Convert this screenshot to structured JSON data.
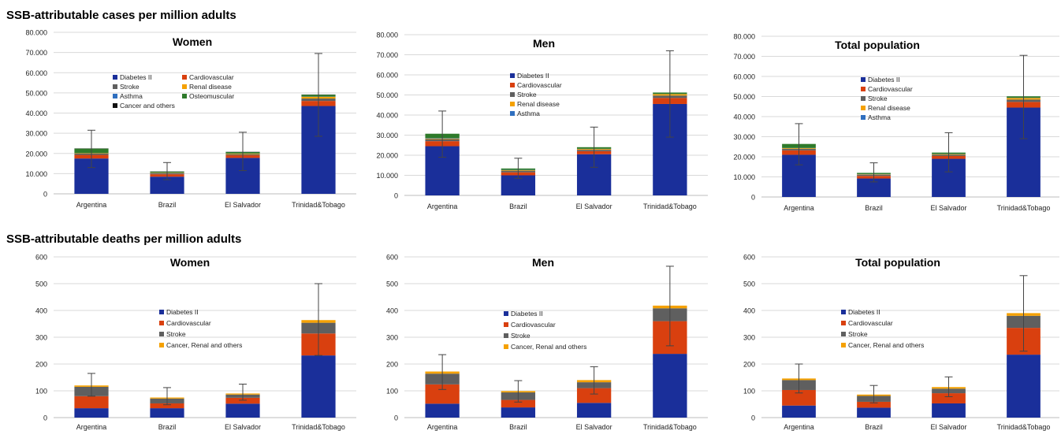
{
  "colors": {
    "diabetes": "#1a2f9a",
    "cardiovascular": "#d9400f",
    "stroke": "#5f5f5f",
    "renal": "#f5a100",
    "asthma": "#2f6fbf",
    "osteomuscular": "#2e7a2a",
    "cancer": "#111111"
  },
  "sections": [
    {
      "title": "SSB-attributable cases per million adults"
    },
    {
      "title": "SSB-attributable deaths per million adults"
    }
  ],
  "chart_data": [
    {
      "type": "bar",
      "stacked": true,
      "title": "Women",
      "categories": [
        "Argentina",
        "Brazil",
        "El Salvador",
        "Trinidad&Tobago"
      ],
      "yticks": [
        "0",
        "10.000",
        "20.000",
        "30.000",
        "40.000",
        "50.000",
        "60.000",
        "70.000",
        "80.000"
      ],
      "ylim": [
        0,
        80000
      ],
      "grid": true,
      "series": [
        {
          "name": "Diabetes II",
          "color_key": "diabetes",
          "values": [
            17500,
            8500,
            17800,
            43500
          ]
        },
        {
          "name": "Cardiovascular",
          "color_key": "cardiovascular",
          "values": [
            1800,
            1200,
            1300,
            2500
          ]
        },
        {
          "name": "Stroke",
          "color_key": "stroke",
          "values": [
            600,
            500,
            500,
            1200
          ]
        },
        {
          "name": "Renal disease",
          "color_key": "renal",
          "values": [
            200,
            200,
            300,
            900
          ]
        },
        {
          "name": "Asthma",
          "color_key": "asthma",
          "values": [
            100,
            100,
            100,
            100
          ]
        },
        {
          "name": "Osteomuscular",
          "color_key": "osteomuscular",
          "values": [
            2200,
            500,
            700,
            900
          ]
        },
        {
          "name": "Cancer and others",
          "color_key": "cancer",
          "values": [
            100,
            100,
            100,
            100
          ]
        }
      ],
      "error_bars": [
        {
          "low": 13000,
          "high": 31500
        },
        {
          "low": 7000,
          "high": 15500
        },
        {
          "low": 11500,
          "high": 30500
        },
        {
          "low": 28500,
          "high": 69500
        }
      ],
      "legend_columns": 2
    },
    {
      "type": "bar",
      "stacked": true,
      "title": "Men",
      "categories": [
        "Argentina",
        "Brazil",
        "El Salvador",
        "Trinidad&Tobago"
      ],
      "yticks": [
        "0",
        "10.000",
        "20.000",
        "30.000",
        "40.000",
        "50.000",
        "60.000",
        "70.000",
        "80.000"
      ],
      "ylim": [
        0,
        80000
      ],
      "grid": true,
      "series": [
        {
          "name": "Diabetes II",
          "color_key": "diabetes",
          "values": [
            24500,
            10000,
            20500,
            45500
          ]
        },
        {
          "name": "Cardiovascular",
          "color_key": "cardiovascular",
          "values": [
            2500,
            1500,
            1500,
            3000
          ]
        },
        {
          "name": "Stroke",
          "color_key": "stroke",
          "values": [
            1000,
            800,
            700,
            1200
          ]
        },
        {
          "name": "Renal disease",
          "color_key": "renal",
          "values": [
            300,
            300,
            400,
            700
          ]
        },
        {
          "name": "Asthma",
          "color_key": "asthma",
          "values": [
            200,
            100,
            100,
            100
          ]
        },
        {
          "name": "",
          "color_key": "osteomuscular",
          "values": [
            2200,
            700,
            800,
            700
          ]
        }
      ],
      "error_bars": [
        {
          "low": 19000,
          "high": 42000
        },
        {
          "low": 8500,
          "high": 18500
        },
        {
          "low": 14000,
          "high": 34000
        },
        {
          "low": 29000,
          "high": 72000
        }
      ],
      "legend_columns": 1
    },
    {
      "type": "bar",
      "stacked": true,
      "title": "Total population",
      "categories": [
        "Argentina",
        "Brazil",
        "El Salvador",
        "Trinidad&Tobago"
      ],
      "yticks": [
        "0",
        "10.000",
        "20.000",
        "30.000",
        "40.000",
        "50.000",
        "60.000",
        "70.000",
        "80.000"
      ],
      "ylim": [
        0,
        80000
      ],
      "grid": true,
      "series": [
        {
          "name": "Diabetes II",
          "color_key": "diabetes",
          "values": [
            21000,
            9200,
            19000,
            44500
          ]
        },
        {
          "name": "Cardiovascular",
          "color_key": "cardiovascular",
          "values": [
            2200,
            1300,
            1400,
            2800
          ]
        },
        {
          "name": "Stroke",
          "color_key": "stroke",
          "values": [
            800,
            600,
            600,
            1200
          ]
        },
        {
          "name": "Renal disease",
          "color_key": "renal",
          "values": [
            300,
            200,
            300,
            800
          ]
        },
        {
          "name": "Asthma",
          "color_key": "asthma",
          "values": [
            100,
            100,
            100,
            100
          ]
        },
        {
          "name": "",
          "color_key": "osteomuscular",
          "values": [
            2000,
            600,
            700,
            700
          ]
        }
      ],
      "error_bars": [
        {
          "low": 16000,
          "high": 36500
        },
        {
          "low": 7500,
          "high": 17000
        },
        {
          "low": 12500,
          "high": 32000
        },
        {
          "low": 29000,
          "high": 70500
        }
      ],
      "legend_columns": 1
    },
    {
      "type": "bar",
      "stacked": true,
      "title": "Women",
      "categories": [
        "Argentina",
        "Brazil",
        "El Salvador",
        "Trinidad&Tobago"
      ],
      "yticks": [
        "0",
        "100",
        "200",
        "300",
        "400",
        "500",
        "600"
      ],
      "ylim": [
        0,
        600
      ],
      "grid": true,
      "series": [
        {
          "name": "Diabetes II",
          "color_key": "diabetes",
          "values": [
            35,
            35,
            52,
            232
          ]
        },
        {
          "name": "Cardiovascular",
          "color_key": "cardiovascular",
          "values": [
            45,
            18,
            22,
            82
          ]
        },
        {
          "name": "Stroke",
          "color_key": "stroke",
          "values": [
            35,
            18,
            12,
            40
          ]
        },
        {
          "name": "Cancer, Renal and others",
          "color_key": "renal",
          "values": [
            5,
            4,
            4,
            10
          ]
        }
      ],
      "error_bars": [
        {
          "low": 80,
          "high": 165
        },
        {
          "low": 48,
          "high": 112
        },
        {
          "low": 65,
          "high": 125
        },
        {
          "low": 232,
          "high": 500
        }
      ],
      "legend_columns": 1
    },
    {
      "type": "bar",
      "stacked": true,
      "title": "Men",
      "categories": [
        "Argentina",
        "Brazil",
        "El Salvador",
        "Trinidad&Tobago"
      ],
      "yticks": [
        "0",
        "100",
        "200",
        "300",
        "400",
        "500",
        "600"
      ],
      "ylim": [
        0,
        600
      ],
      "grid": true,
      "series": [
        {
          "name": "Diabetes II",
          "color_key": "diabetes",
          "values": [
            52,
            38,
            55,
            238
          ]
        },
        {
          "name": "Cardiovascular",
          "color_key": "cardiovascular",
          "values": [
            72,
            28,
            55,
            122
          ]
        },
        {
          "name": "Stroke",
          "color_key": "stroke",
          "values": [
            40,
            28,
            22,
            48
          ]
        },
        {
          "name": "Cancer, Renal and others",
          "color_key": "renal",
          "values": [
            8,
            5,
            8,
            10
          ]
        }
      ],
      "error_bars": [
        {
          "low": 105,
          "high": 235
        },
        {
          "low": 58,
          "high": 138
        },
        {
          "low": 88,
          "high": 190
        },
        {
          "low": 268,
          "high": 565
        }
      ],
      "legend_columns": 1
    },
    {
      "type": "bar",
      "stacked": true,
      "title": "Total population",
      "categories": [
        "Argentina",
        "Brazil",
        "El Salvador",
        "Trinidad&Tobago"
      ],
      "yticks": [
        "0",
        "100",
        "200",
        "300",
        "400",
        "500",
        "600"
      ],
      "ylim": [
        0,
        600
      ],
      "grid": true,
      "series": [
        {
          "name": "Diabetes II",
          "color_key": "diabetes",
          "values": [
            45,
            37,
            53,
            235
          ]
        },
        {
          "name": "Cardiovascular",
          "color_key": "cardiovascular",
          "values": [
            58,
            22,
            38,
            100
          ]
        },
        {
          "name": "Stroke",
          "color_key": "stroke",
          "values": [
            37,
            22,
            17,
            45
          ]
        },
        {
          "name": "Cancer, Renal and others",
          "color_key": "renal",
          "values": [
            6,
            5,
            6,
            10
          ]
        }
      ],
      "error_bars": [
        {
          "low": 92,
          "high": 200
        },
        {
          "low": 55,
          "high": 120
        },
        {
          "low": 78,
          "high": 152
        },
        {
          "low": 248,
          "high": 530
        }
      ],
      "legend_columns": 1
    }
  ]
}
